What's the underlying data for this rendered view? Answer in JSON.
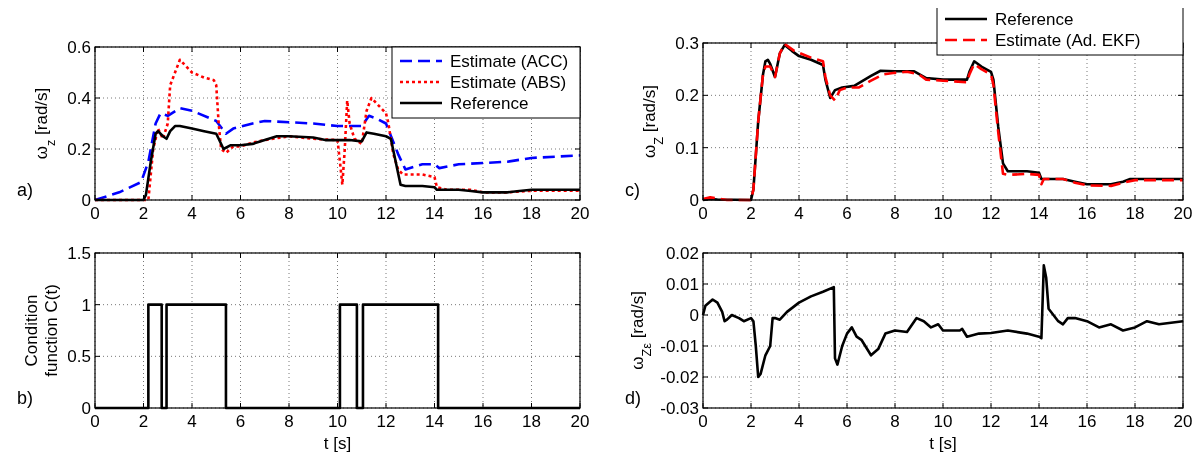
{
  "chart_data": [
    {
      "type": "line",
      "ylabel": "ω$_{z}$ [rad/s]",
      "annotations": [
        "a)"
      ],
      "xlim": [
        0,
        20
      ],
      "xticks": [
        0,
        2,
        4,
        6,
        8,
        10,
        12,
        14,
        16,
        18,
        20
      ],
      "ylim": [
        0,
        0.6
      ],
      "yticks": [
        0,
        0.2,
        0.4,
        0.6
      ],
      "grid": true,
      "legend": "top right",
      "series": [
        {
          "name": "Estimate (ACC)",
          "color": "#0000ff",
          "line_style": "dashed",
          "x": [
            0,
            1,
            1.9,
            2.2,
            2.5,
            2.7,
            3,
            3.5,
            4,
            5,
            5.4,
            5.7,
            6.5,
            7,
            8,
            9,
            10,
            11,
            11.3,
            11.6,
            12,
            12.5,
            12.8,
            13.5,
            14,
            14.2,
            15,
            16,
            17,
            18,
            20
          ],
          "values": [
            0,
            0.03,
            0.07,
            0.15,
            0.3,
            0.34,
            0.33,
            0.36,
            0.35,
            0.31,
            0.26,
            0.28,
            0.3,
            0.31,
            0.305,
            0.3,
            0.29,
            0.29,
            0.33,
            0.32,
            0.3,
            0.18,
            0.12,
            0.14,
            0.14,
            0.125,
            0.14,
            0.145,
            0.15,
            0.165,
            0.175
          ]
        },
        {
          "name": "Estimate (ABS)",
          "color": "#ff0000",
          "line_style": "dotted",
          "x": [
            0,
            2,
            2.2,
            2.4,
            2.6,
            2.8,
            3,
            3.1,
            3.3,
            3.5,
            3.7,
            4,
            4.5,
            4.9,
            5,
            5.1,
            5.2,
            5.4,
            5.7,
            6,
            6.5,
            7,
            8,
            9,
            10,
            10.1,
            10.2,
            10.3,
            10.4,
            10.5,
            10.7,
            11,
            11.2,
            11.4,
            11.6,
            12,
            12.1,
            12.3,
            12.5,
            12.7,
            13.5,
            14,
            14.1,
            14.5,
            15.5,
            16,
            17,
            18,
            20
          ],
          "values": [
            0,
            0,
            0,
            0.2,
            0.28,
            0.24,
            0.3,
            0.45,
            0.5,
            0.55,
            0.53,
            0.5,
            0.48,
            0.47,
            0.45,
            0.3,
            0.2,
            0.185,
            0.21,
            0.21,
            0.225,
            0.235,
            0.25,
            0.24,
            0.235,
            0.15,
            0.06,
            0.2,
            0.39,
            0.3,
            0.24,
            0.22,
            0.35,
            0.4,
            0.38,
            0.34,
            0.3,
            0.18,
            0.12,
            0.1,
            0.1,
            0.09,
            0.05,
            0.04,
            0.04,
            0.03,
            0.03,
            0.036,
            0.036
          ]
        },
        {
          "name": "Reference",
          "color": "#000000",
          "line_style": "solid",
          "x": [
            0,
            2,
            2.1,
            2.3,
            2.5,
            2.6,
            2.8,
            2.95,
            3.1,
            3.3,
            3.5,
            4,
            4.5,
            5,
            5.1,
            5.3,
            5.6,
            6,
            6.5,
            7,
            7.5,
            8,
            9,
            9.5,
            10,
            10.5,
            11,
            11.2,
            11.5,
            12,
            12.2,
            12.4,
            12.6,
            12.8,
            13.5,
            14,
            14.1,
            15,
            15.5,
            16,
            17,
            17.5,
            18,
            20
          ],
          "values": [
            0,
            0,
            0.02,
            0.15,
            0.26,
            0.27,
            0.25,
            0.24,
            0.27,
            0.29,
            0.29,
            0.28,
            0.27,
            0.26,
            0.24,
            0.2,
            0.215,
            0.215,
            0.22,
            0.235,
            0.25,
            0.25,
            0.245,
            0.235,
            0.235,
            0.235,
            0.23,
            0.265,
            0.26,
            0.25,
            0.24,
            0.15,
            0.06,
            0.055,
            0.055,
            0.05,
            0.04,
            0.04,
            0.035,
            0.03,
            0.03,
            0.035,
            0.04,
            0.04
          ]
        }
      ]
    },
    {
      "type": "step",
      "ylabel": "Condition function C(t)",
      "xlabel": "t [s]",
      "annotations": [
        "b)"
      ],
      "xlim": [
        0,
        20
      ],
      "xticks": [
        0,
        2,
        4,
        6,
        8,
        10,
        12,
        14,
        16,
        18,
        20
      ],
      "ylim": [
        0,
        1.5
      ],
      "yticks": [
        0,
        0.5,
        1,
        1.5
      ],
      "grid": true,
      "series": [
        {
          "color": "#000000",
          "line_style": "solid",
          "x": [
            0,
            2.2,
            2.75,
            2.95,
            5.4,
            10.1,
            10.8,
            11.05,
            14.15,
            20
          ],
          "values": [
            0,
            1,
            0,
            1,
            0,
            1,
            0,
            1,
            0,
            0
          ]
        }
      ]
    },
    {
      "type": "line",
      "ylabel": "ω$_{Z}$ [rad/s]",
      "annotations": [
        "c)"
      ],
      "xlim": [
        0,
        20
      ],
      "xticks": [
        0,
        2,
        4,
        6,
        8,
        10,
        12,
        14,
        16,
        18,
        20
      ],
      "ylim": [
        0,
        0.3
      ],
      "yticks": [
        0,
        0.1,
        0.2,
        0.3
      ],
      "grid": true,
      "legend": "top right",
      "series": [
        {
          "name": "Reference",
          "color": "#000000",
          "line_style": "solid",
          "x": [
            0,
            0.3,
            0.6,
            2,
            2.1,
            2.3,
            2.5,
            2.6,
            2.7,
            2.8,
            3,
            3.2,
            3.4,
            3.7,
            4,
            4.5,
            5,
            5.1,
            5.3,
            5.5,
            5.8,
            6.3,
            7,
            7.4,
            8,
            8.8,
            9.3,
            10,
            11,
            11.1,
            11.3,
            11.6,
            12,
            12.1,
            12.3,
            12.5,
            12.7,
            13.5,
            14,
            14.1,
            15,
            15.5,
            16,
            17,
            17.5,
            17.8,
            20
          ],
          "values": [
            0,
            0.002,
            0.001,
            0,
            0.02,
            0.15,
            0.24,
            0.265,
            0.268,
            0.26,
            0.235,
            0.28,
            0.296,
            0.285,
            0.275,
            0.268,
            0.258,
            0.23,
            0.195,
            0.21,
            0.215,
            0.218,
            0.237,
            0.247,
            0.246,
            0.246,
            0.233,
            0.23,
            0.23,
            0.245,
            0.265,
            0.255,
            0.245,
            0.23,
            0.14,
            0.07,
            0.055,
            0.055,
            0.052,
            0.04,
            0.04,
            0.035,
            0.03,
            0.03,
            0.035,
            0.04,
            0.04
          ]
        },
        {
          "name": "Estimate (Ad. EKF)",
          "color": "#ff0000",
          "line_style": "dashed",
          "x": [
            0,
            0.3,
            0.6,
            1,
            2,
            2.1,
            2.3,
            2.5,
            2.6,
            2.8,
            3,
            3.2,
            3.4,
            3.8,
            4.5,
            5,
            5.1,
            5.3,
            5.5,
            5.7,
            6,
            6.5,
            7,
            7.5,
            8,
            8.5,
            9,
            9.3,
            10,
            11,
            11.1,
            11.3,
            11.6,
            12,
            12.1,
            12.3,
            12.5,
            12.7,
            13.5,
            14,
            14.1,
            14.2,
            15,
            15.5,
            16,
            17,
            17.5,
            18,
            20
          ],
          "values": [
            0.002,
            0.005,
            0.003,
            0,
            0,
            0.02,
            0.15,
            0.24,
            0.255,
            0.255,
            0.235,
            0.28,
            0.298,
            0.285,
            0.272,
            0.265,
            0.235,
            0.2,
            0.19,
            0.21,
            0.215,
            0.215,
            0.228,
            0.24,
            0.243,
            0.245,
            0.24,
            0.23,
            0.228,
            0.225,
            0.24,
            0.26,
            0.25,
            0.24,
            0.22,
            0.13,
            0.05,
            0.048,
            0.05,
            0.048,
            0.03,
            0.04,
            0.04,
            0.033,
            0.028,
            0.027,
            0.033,
            0.038,
            0.038
          ]
        }
      ]
    },
    {
      "type": "line",
      "ylabel": "ω$_{Zε}$ [rad/s]",
      "xlabel": "t [s]",
      "annotations": [
        "d)"
      ],
      "xlim": [
        0,
        20
      ],
      "xticks": [
        0,
        2,
        4,
        6,
        8,
        10,
        12,
        14,
        16,
        18,
        20
      ],
      "ylim": [
        -0.03,
        0.02
      ],
      "yticks": [
        -0.03,
        -0.02,
        -0.01,
        0,
        0.01,
        0.02
      ],
      "grid": true,
      "series": [
        {
          "color": "#000000",
          "line_style": "solid",
          "x": [
            0,
            0.1,
            0.4,
            0.6,
            0.8,
            0.9,
            1,
            1.2,
            1.5,
            1.7,
            2,
            2.1,
            2.2,
            2.3,
            2.4,
            2.6,
            2.8,
            2.9,
            3,
            3.2,
            3.5,
            4,
            4.5,
            5,
            5.45,
            5.5,
            5.6,
            5.8,
            6,
            6.2,
            6.4,
            6.6,
            7,
            7.3,
            7.6,
            8,
            8.5,
            8.9,
            9.2,
            9.5,
            9.8,
            10,
            10.7,
            10.8,
            11,
            11.5,
            12,
            12.7,
            13.5,
            14,
            14.1,
            14.2,
            14.3,
            14.4,
            14.6,
            14.8,
            15,
            15.2,
            15.5,
            16,
            16.5,
            17,
            17.5,
            18,
            18.5,
            19,
            19.5,
            20
          ],
          "values": [
            0,
            0.003,
            0.005,
            0.004,
            0.001,
            -0.002,
            -0.0015,
            0,
            -0.001,
            -0.002,
            -0.001,
            -0.002,
            -0.01,
            -0.02,
            -0.019,
            -0.013,
            -0.01,
            -0.001,
            -0.001,
            -0.0015,
            0.001,
            0.004,
            0.006,
            0.0075,
            0.009,
            -0.014,
            -0.016,
            -0.01,
            -0.006,
            -0.004,
            -0.007,
            -0.008,
            -0.013,
            -0.011,
            -0.006,
            -0.005,
            -0.0055,
            -0.001,
            -0.002,
            -0.004,
            -0.003,
            -0.005,
            -0.005,
            -0.0045,
            -0.007,
            -0.006,
            -0.0058,
            -0.005,
            -0.006,
            -0.007,
            -0.0075,
            0.016,
            0.012,
            0.002,
            0,
            -0.002,
            -0.003,
            -0.001,
            -0.001,
            -0.002,
            -0.004,
            -0.003,
            -0.005,
            -0.004,
            -0.002,
            -0.003,
            -0.0025,
            -0.002
          ]
        }
      ]
    }
  ]
}
